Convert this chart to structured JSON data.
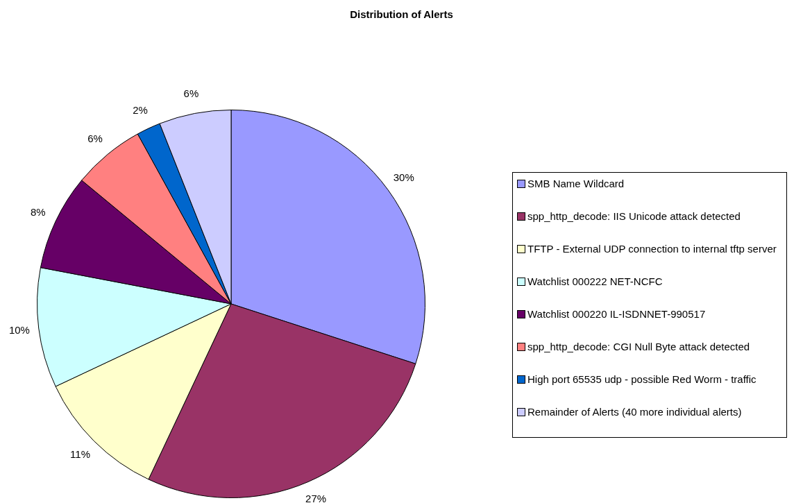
{
  "chart_data": {
    "type": "pie",
    "title": "Distribution of Alerts",
    "categories": [
      "SMB Name Wildcard",
      "spp_http_decode: IIS Unicode attack detected",
      "TFTP - External UDP connection to internal tftp server",
      "Watchlist 000222 NET-NCFC",
      "Watchlist 000220 IL-ISDNNET-990517",
      "spp_http_decode: CGI Null Byte attack detected",
      "High port 65535 udp - possible Red Worm - traffic",
      "Remainder of Alerts (40 more individual alerts)"
    ],
    "values": [
      30,
      27,
      11,
      10,
      8,
      6,
      2,
      6
    ],
    "colors": [
      "#9999ff",
      "#993366",
      "#ffffcc",
      "#ccffff",
      "#660066",
      "#ff8080",
      "#0066cc",
      "#ccccff"
    ],
    "value_labels": [
      "30%",
      "27%",
      "11%",
      "10%",
      "8%",
      "6%",
      "2%",
      "6%"
    ],
    "legend": "right"
  }
}
